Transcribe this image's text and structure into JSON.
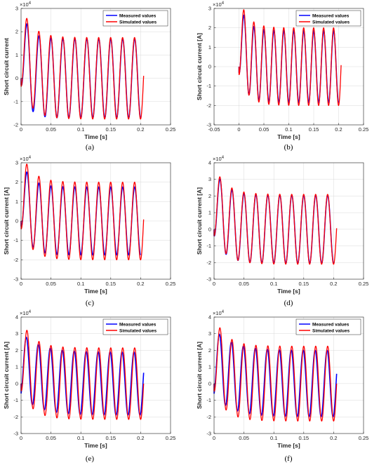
{
  "colors": {
    "measured": "#0000ff",
    "simulated": "#ff0000",
    "axis": "#262626",
    "grid": "#d9d9d9"
  },
  "legend": {
    "measured": "Measured values",
    "simulated": "Simulated values"
  },
  "chart_data": [
    {
      "panel": "a",
      "caption": "(a)",
      "type": "line",
      "xlabel": "Time [s]",
      "ylabel": "Short circuit current",
      "exponent": "4",
      "xlim": [
        0,
        0.25
      ],
      "ylim": [
        -2,
        3
      ],
      "xticks": [
        0,
        0.05,
        0.1,
        0.15,
        0.2,
        0.25
      ],
      "xticklabels": [
        "0",
        "0.05",
        "0.1",
        "0.15",
        "0.2",
        "0.25"
      ],
      "yticks": [
        -2,
        -1,
        0,
        1,
        2,
        3
      ],
      "yticklabels": [
        "-2",
        "-1",
        "0",
        "1",
        "2",
        "3"
      ],
      "grid": true,
      "legend": "top-right",
      "series": [
        {
          "name": "Measured values",
          "amplitude": 1.7,
          "dc_offset": 1.05,
          "dc_tau": 0.012,
          "t_start": 0.0,
          "t_end": 0.2,
          "phase": 0.0
        },
        {
          "name": "Simulated values",
          "amplitude": 1.75,
          "dc_offset": 0.9,
          "dc_tau": 0.018,
          "t_start": 0.0,
          "t_end": 0.205,
          "phase": 0.06
        }
      ]
    },
    {
      "panel": "b",
      "caption": "(b)",
      "type": "line",
      "xlabel": "Time [s]",
      "ylabel": "Short circuit current [A]",
      "exponent": "4",
      "xlim": [
        -0.05,
        0.25
      ],
      "ylim": [
        -3,
        3
      ],
      "xticks": [
        -0.05,
        0,
        0.05,
        0.1,
        0.15,
        0.2,
        0.25
      ],
      "xticklabels": [
        "-0.05",
        "0",
        "0.05",
        "0.1",
        "0.15",
        "0.2",
        "0.25"
      ],
      "yticks": [
        -3,
        -2,
        -1,
        0,
        1,
        2,
        3
      ],
      "yticklabels": [
        "-3",
        "-2",
        "-1",
        "0",
        "1",
        "2",
        "3"
      ],
      "grid": true,
      "legend": "top-right",
      "series": [
        {
          "name": "Measured values",
          "amplitude": 1.85,
          "dc_offset": 1.1,
          "dc_tau": 0.015,
          "t_start": 0.0,
          "t_end": 0.2,
          "phase": 0.0
        },
        {
          "name": "Simulated values",
          "amplitude": 2.0,
          "dc_offset": 1.0,
          "dc_tau": 0.018,
          "t_start": 0.0,
          "t_end": 0.205,
          "phase": 0.04
        }
      ]
    },
    {
      "panel": "c",
      "caption": "(c)",
      "type": "line",
      "xlabel": "Time [s]",
      "ylabel": "Short circuit current [A]",
      "exponent": "4",
      "xlim": [
        0,
        0.25
      ],
      "ylim": [
        -3,
        3
      ],
      "xticks": [
        0,
        0.05,
        0.1,
        0.15,
        0.2,
        0.25
      ],
      "xticklabels": [
        "0",
        "0.05",
        "0.1",
        "0.15",
        "0.2",
        "0.25"
      ],
      "yticks": [
        -3,
        -2,
        -1,
        0,
        1,
        2,
        3
      ],
      "yticklabels": [
        "-3",
        "-2",
        "-1",
        "0",
        "1",
        "2",
        "3"
      ],
      "grid": true,
      "legend": "none",
      "series": [
        {
          "name": "Measured values",
          "amplitude": 1.75,
          "dc_offset": 1.1,
          "dc_tau": 0.015,
          "t_start": 0.0,
          "t_end": 0.2,
          "phase": 0.0
        },
        {
          "name": "Simulated values",
          "amplitude": 2.0,
          "dc_offset": 1.0,
          "dc_tau": 0.018,
          "t_start": 0.0,
          "t_end": 0.205,
          "phase": 0.04
        }
      ]
    },
    {
      "panel": "d",
      "caption": "(d)",
      "type": "line",
      "xlabel": "Time [s]",
      "ylabel": "Short circuit current [A]",
      "exponent": "4",
      "xlim": [
        0,
        0.25
      ],
      "ylim": [
        -3,
        4
      ],
      "xticks": [
        0,
        0.05,
        0.1,
        0.15,
        0.2,
        0.25
      ],
      "xticklabels": [
        "0",
        "0.05",
        "0.1",
        "0.15",
        "0.2",
        "0.25"
      ],
      "yticks": [
        -3,
        -2,
        -1,
        0,
        1,
        2,
        3,
        4
      ],
      "yticklabels": [
        "-3",
        "-2",
        "-1",
        "0",
        "1",
        "2",
        "3",
        "4"
      ],
      "grid": true,
      "legend": "none",
      "series": [
        {
          "name": "Measured values",
          "amplitude": 2.05,
          "dc_offset": 1.1,
          "dc_tau": 0.018,
          "t_start": 0.0,
          "t_end": 0.2,
          "phase": 0.0
        },
        {
          "name": "Simulated values",
          "amplitude": 2.1,
          "dc_offset": 1.15,
          "dc_tau": 0.02,
          "t_start": 0.0,
          "t_end": 0.205,
          "phase": 0.03
        }
      ]
    },
    {
      "panel": "e",
      "caption": "(e)",
      "type": "line",
      "xlabel": "Time [s]",
      "ylabel": "Short circuit current [A]",
      "exponent": "4",
      "xlim": [
        0,
        0.25
      ],
      "ylim": [
        -3,
        4
      ],
      "xticks": [
        0,
        0.05,
        0.1,
        0.15,
        0.2,
        0.25
      ],
      "xticklabels": [
        "0",
        "0.05",
        "0.1",
        "0.15",
        "0.2",
        "0.25"
      ],
      "yticks": [
        -3,
        -2,
        -1,
        0,
        1,
        2,
        3,
        4
      ],
      "yticklabels": [
        "-3",
        "-2",
        "-1",
        "0",
        "1",
        "2",
        "3",
        "4"
      ],
      "grid": true,
      "legend": "top-right",
      "series": [
        {
          "name": "Measured values",
          "amplitude": 1.9,
          "dc_offset": 0.3,
          "dc_tau": 0.03,
          "t_start": 0.0,
          "t_end": 0.205,
          "phase": 0.35
        },
        {
          "name": "Simulated values",
          "amplitude": 2.15,
          "dc_offset": 1.1,
          "dc_tau": 0.02,
          "t_start": 0.0,
          "t_end": 0.205,
          "phase": 0.0
        }
      ]
    },
    {
      "panel": "f",
      "caption": "(f)",
      "type": "line",
      "xlabel": "Time [s]",
      "ylabel": "Short circuit current [A]",
      "exponent": "4",
      "xlim": [
        0,
        0.25
      ],
      "ylim": [
        -3,
        4
      ],
      "xticks": [
        0,
        0.05,
        0.1,
        0.15,
        0.2,
        0.25
      ],
      "xticklabels": [
        "0",
        "0.05",
        "0.1",
        "0.15",
        "0.2",
        "0.25"
      ],
      "yticks": [
        -3,
        -2,
        -1,
        0,
        1,
        2,
        3,
        4
      ],
      "yticklabels": [
        "-3",
        "-2",
        "-1",
        "0",
        "1",
        "2",
        "3",
        "4"
      ],
      "grid": true,
      "legend": "top-right",
      "series": [
        {
          "name": "Measured values",
          "amplitude": 2.0,
          "dc_offset": 0.4,
          "dc_tau": 0.03,
          "t_start": 0.0,
          "t_end": 0.205,
          "phase": 0.3
        },
        {
          "name": "Simulated values",
          "amplitude": 2.25,
          "dc_offset": 1.15,
          "dc_tau": 0.02,
          "t_start": 0.0,
          "t_end": 0.205,
          "phase": 0.0
        }
      ]
    }
  ]
}
